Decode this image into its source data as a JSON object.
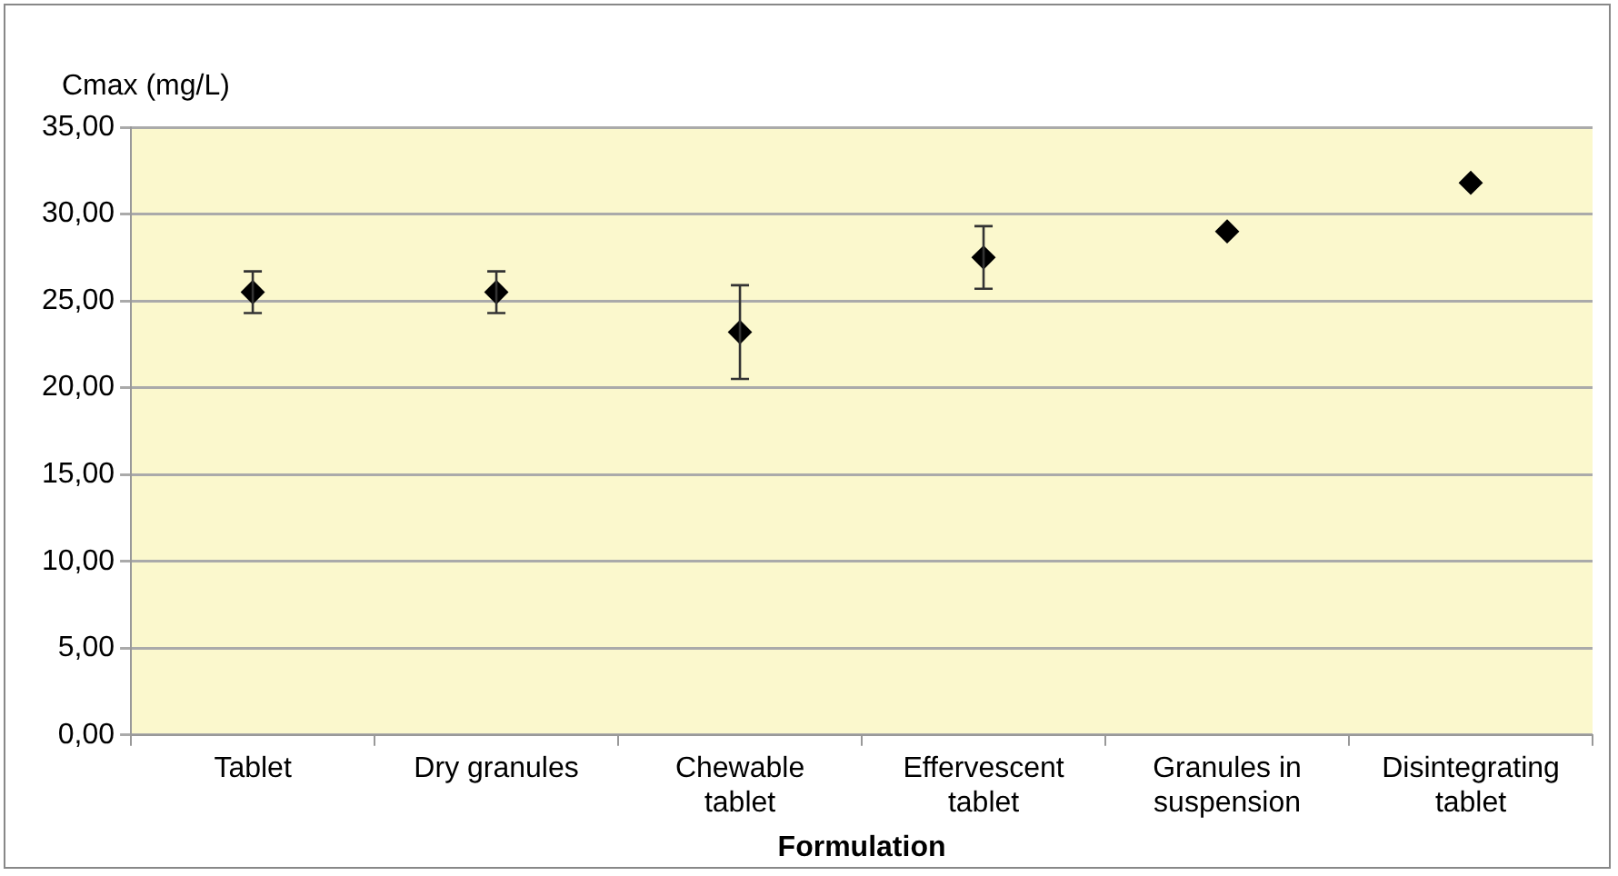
{
  "chart_data": {
    "type": "scatter",
    "ylabel": "Cmax (mg/L)",
    "xlabel": "Formulation",
    "categories": [
      "Tablet",
      "Dry granules",
      "Chewable tablet",
      "Effervescent tablet",
      "Granules in suspension",
      "Disintegrating tablet"
    ],
    "values": [
      25.5,
      25.5,
      23.2,
      27.5,
      29.0,
      31.8
    ],
    "errors": [
      1.2,
      1.2,
      2.7,
      1.8,
      null,
      null
    ],
    "color": "#000000",
    "marker": "diamond",
    "grid": "y",
    "ylim": [
      0,
      35
    ],
    "yticks": [
      {
        "value": 0,
        "label": "0,00"
      },
      {
        "value": 5,
        "label": "5,00"
      },
      {
        "value": 10,
        "label": "10,00"
      },
      {
        "value": 15,
        "label": "15,00"
      },
      {
        "value": 20,
        "label": "20,00"
      },
      {
        "value": 25,
        "label": "25,00"
      },
      {
        "value": 30,
        "label": "30,00"
      },
      {
        "value": 35,
        "label": "35,00"
      }
    ]
  }
}
